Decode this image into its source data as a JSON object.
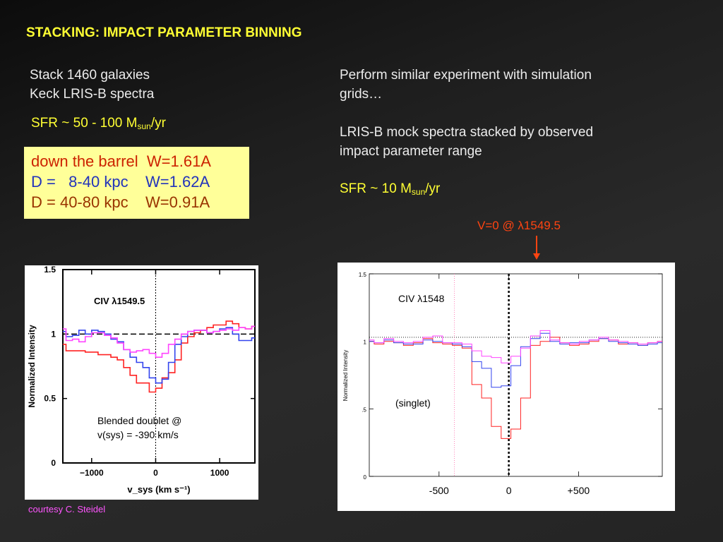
{
  "slide": {
    "title": "STACKING: IMPACT PARAMETER BINNING",
    "left_text": [
      "Stack 1460 galaxies",
      "Keck LRIS-B spectra"
    ],
    "left_sfr": {
      "prefix": "SFR ~ 50 - 100 M",
      "sub": "sun",
      "suffix": "/yr"
    },
    "right_text1": [
      "Perform similar experiment with simulation",
      "grids…"
    ],
    "right_text2": [
      "LRIS-B mock spectra stacked by observed",
      "impact parameter range"
    ],
    "right_sfr": {
      "prefix": "SFR ~ 10 M",
      "sub": "sun",
      "suffix": "/yr"
    },
    "legend_box": [
      {
        "text": "down the barrel  W=1.61A",
        "color": "#cc2200"
      },
      {
        "text": "D =   8-40 kpc    W=1.62A",
        "color": "#2233bb"
      },
      {
        "text": "D = 40-80 kpc    W=0.91A",
        "color": "#993300"
      }
    ],
    "arrow_label": "V=0 @ λ1549.5",
    "arrow_color": "#ff4411",
    "courtesy": "courtesy C. Steidel"
  },
  "chart_data": [
    {
      "type": "line",
      "title": "CIV  λ1549.5",
      "xlabel": "v_sys (km s⁻¹)",
      "ylabel": "Normalized Intensity",
      "xlim": [
        -1450,
        1550
      ],
      "ylim": [
        0,
        1.5
      ],
      "xticks": [
        -1000,
        0,
        1000
      ],
      "xtick_labels": [
        "−1000",
        "0",
        "1000"
      ],
      "yticks": [
        0,
        0.5,
        1,
        1.5
      ],
      "ytick_labels": [
        "0",
        "0.5",
        "1",
        "1.5"
      ],
      "reference_line": 1.0,
      "zero_velocity": 0,
      "annotation": [
        "Blended doublet @",
        "v(sys) = -390 km/s"
      ],
      "x": [
        -1450,
        -1350,
        -1250,
        -1150,
        -1050,
        -950,
        -850,
        -750,
        -650,
        -550,
        -450,
        -350,
        -250,
        -150,
        -50,
        50,
        150,
        250,
        350,
        450,
        550,
        650,
        750,
        850,
        950,
        1050,
        1150,
        1250,
        1350,
        1450,
        1550
      ],
      "series": [
        {
          "color": "#ff2222",
          "values": [
            0.92,
            0.87,
            0.87,
            0.87,
            0.86,
            0.86,
            0.84,
            0.84,
            0.82,
            0.8,
            0.74,
            0.68,
            0.62,
            0.62,
            0.55,
            0.58,
            0.66,
            0.7,
            0.8,
            0.93,
            0.98,
            1.01,
            1.03,
            1.05,
            1.07,
            1.07,
            1.1,
            1.08,
            1.05,
            1.04,
            1.06
          ]
        },
        {
          "color": "#3344ee",
          "values": [
            1.02,
            0.98,
            0.99,
            1.03,
            1.0,
            1.03,
            1.02,
            1.0,
            0.96,
            0.94,
            0.88,
            0.82,
            0.78,
            0.74,
            0.66,
            0.62,
            0.65,
            0.78,
            0.92,
            0.98,
            1.02,
            1.03,
            1.03,
            1.01,
            1.02,
            1.04,
            1.05,
            1.0,
            0.95,
            0.95,
            0.97
          ]
        },
        {
          "color": "#ff44ff",
          "values": [
            1.04,
            0.95,
            0.96,
            0.94,
            0.98,
            1.01,
            1.01,
            0.99,
            0.97,
            0.93,
            0.88,
            0.86,
            0.87,
            0.88,
            0.85,
            0.82,
            0.85,
            0.92,
            0.96,
            1.0,
            1.02,
            1.03,
            1.03,
            1.01,
            1.02,
            1.03,
            1.04,
            1.03,
            1.05,
            1.04,
            1.06
          ]
        }
      ]
    },
    {
      "type": "line",
      "title": "CIV  λ1548",
      "ylabel": "Normalized Intensity",
      "xlim": [
        -1000,
        1100
      ],
      "ylim": [
        0,
        1.5
      ],
      "xticks": [
        -500,
        0,
        500
      ],
      "xtick_labels": [
        "-500",
        "0",
        "+500"
      ],
      "yticks": [
        0,
        0.5,
        1,
        1.5
      ],
      "ytick_labels": [
        "0",
        ".5",
        "1",
        "1.5"
      ],
      "reference_line": 1.03,
      "zero_velocity": 0,
      "secondary_velocity": -390,
      "annotation": "(singlet)",
      "x": [
        -1000,
        -930,
        -860,
        -790,
        -720,
        -650,
        -580,
        -510,
        -440,
        -370,
        -300,
        -230,
        -160,
        -90,
        -20,
        50,
        120,
        190,
        260,
        330,
        400,
        470,
        540,
        610,
        680,
        750,
        820,
        890,
        960,
        1030,
        1100
      ],
      "series": [
        {
          "color": "#ff2222",
          "values": [
            1.0,
            0.98,
            1.0,
            0.99,
            0.97,
            0.99,
            1.02,
            0.99,
            0.98,
            0.97,
            0.95,
            0.68,
            0.58,
            0.37,
            0.28,
            0.35,
            0.58,
            0.97,
            1.0,
            1.03,
            0.99,
            0.97,
            0.98,
            1.0,
            1.02,
            1.01,
            0.98,
            0.99,
            0.97,
            0.99,
            1.0
          ]
        },
        {
          "color": "#3344ee",
          "values": [
            1.0,
            0.99,
            1.01,
            0.99,
            0.98,
            0.98,
            1.01,
            1.0,
            0.99,
            0.98,
            0.96,
            0.85,
            0.8,
            0.66,
            0.67,
            0.82,
            0.96,
            1.02,
            1.06,
            1.0,
            0.98,
            0.99,
            0.99,
            1.01,
            1.02,
            1.0,
            0.99,
            0.98,
            0.97,
            0.98,
            0.99
          ]
        },
        {
          "color": "#ff44ff",
          "values": [
            1.01,
            0.99,
            1.02,
            1.0,
            0.99,
            1.0,
            1.03,
            1.04,
            0.99,
            0.99,
            0.98,
            0.93,
            0.89,
            0.88,
            0.84,
            0.89,
            0.95,
            1.04,
            1.08,
            1.01,
            0.99,
            0.98,
            1.0,
            1.01,
            1.03,
            1.01,
            1.0,
            0.99,
            0.98,
            0.99,
            1.0
          ]
        }
      ]
    }
  ]
}
